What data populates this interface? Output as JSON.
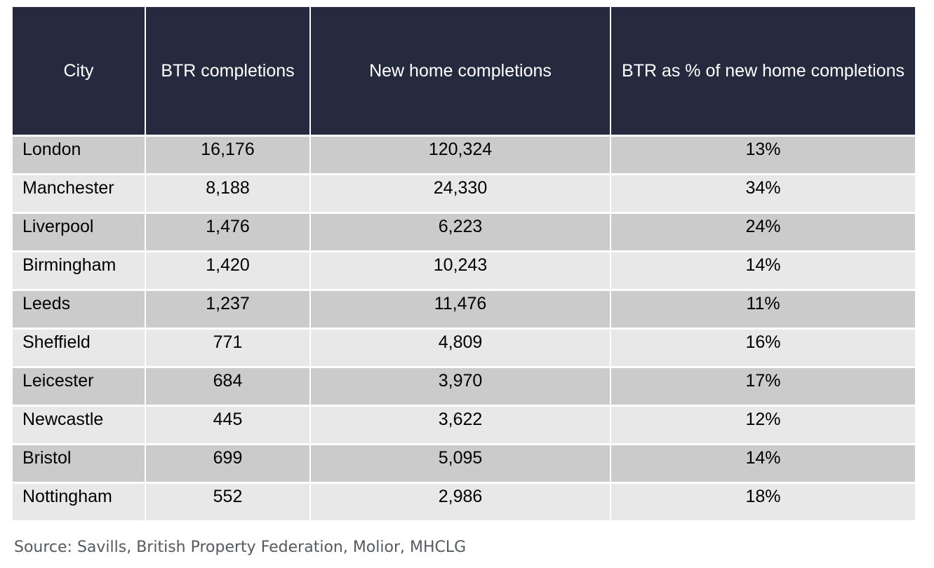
{
  "table": {
    "headers": [
      "City",
      "BTR completions",
      "New home completions",
      "BTR as % of new home completions"
    ],
    "rows": [
      [
        "London",
        "16,176",
        "120,324",
        "13%"
      ],
      [
        "Manchester",
        "8,188",
        "24,330",
        "34%"
      ],
      [
        "Liverpool",
        "1,476",
        "6,223",
        "24%"
      ],
      [
        "Birmingham",
        "1,420",
        "10,243",
        "14%"
      ],
      [
        "Leeds",
        "1,237",
        "11,476",
        "11%"
      ],
      [
        "Sheffield",
        "771",
        "4,809",
        "16%"
      ],
      [
        "Leicester",
        "684",
        "3,970",
        "17%"
      ],
      [
        "Newcastle",
        "445",
        "3,622",
        "12%"
      ],
      [
        "Bristol",
        "699",
        "5,095",
        "14%"
      ],
      [
        "Nottingham",
        "552",
        "2,986",
        "18%"
      ]
    ]
  },
  "source": "Source: Savills, British Property Federation, Molior, MHCLG",
  "colors": {
    "header_bg": "#252a3e",
    "row_odd_bg": "#cbcbcb",
    "row_even_bg": "#e8e8e8",
    "source_text": "#555a5f"
  },
  "chart_data": {
    "type": "table",
    "columns": [
      "City",
      "BTR completions",
      "New home completions",
      "BTR as % of new home completions"
    ],
    "rows": [
      {
        "City": "London",
        "BTR completions": 16176,
        "New home completions": 120324,
        "BTR as % of new home completions": 13
      },
      {
        "City": "Manchester",
        "BTR completions": 8188,
        "New home completions": 24330,
        "BTR as % of new home completions": 34
      },
      {
        "City": "Liverpool",
        "BTR completions": 1476,
        "New home completions": 6223,
        "BTR as % of new home completions": 24
      },
      {
        "City": "Birmingham",
        "BTR completions": 1420,
        "New home completions": 10243,
        "BTR as % of new home completions": 14
      },
      {
        "City": "Leeds",
        "BTR completions": 1237,
        "New home completions": 11476,
        "BTR as % of new home completions": 11
      },
      {
        "City": "Sheffield",
        "BTR completions": 771,
        "New home completions": 4809,
        "BTR as % of new home completions": 16
      },
      {
        "City": "Leicester",
        "BTR completions": 684,
        "New home completions": 3970,
        "BTR as % of new home completions": 17
      },
      {
        "City": "Newcastle",
        "BTR completions": 445,
        "New home completions": 3622,
        "BTR as % of new home completions": 12
      },
      {
        "City": "Bristol",
        "BTR completions": 699,
        "New home completions": 5095,
        "BTR as % of new home completions": 14
      },
      {
        "City": "Nottingham",
        "BTR completions": 552,
        "New home completions": 2986,
        "BTR as % of new home completions": 18
      }
    ]
  }
}
